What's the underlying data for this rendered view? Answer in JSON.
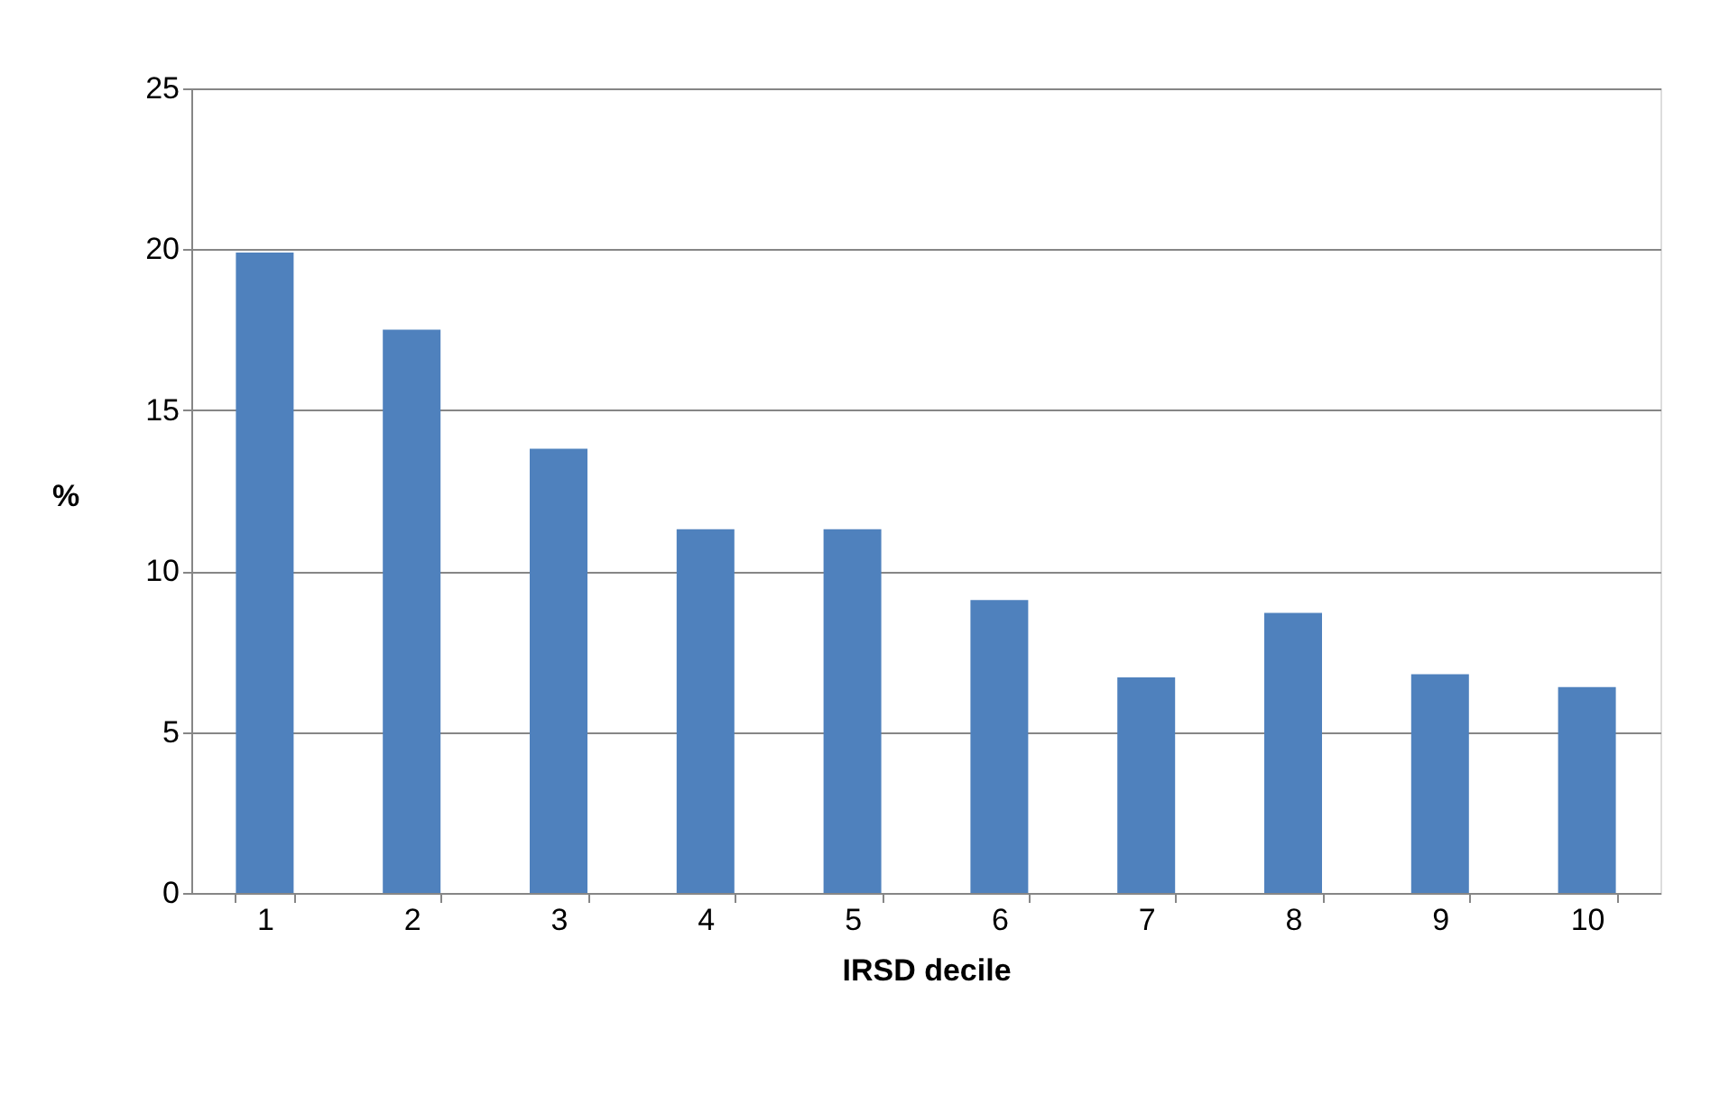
{
  "chart_data": {
    "type": "bar",
    "xlabel": "IRSD decile",
    "ylabel": "%",
    "categories": [
      "1",
      "2",
      "3",
      "4",
      "5",
      "6",
      "7",
      "8",
      "9",
      "10"
    ],
    "values": [
      19.9,
      17.5,
      13.8,
      11.3,
      11.3,
      9.1,
      6.7,
      8.7,
      6.8,
      6.4
    ],
    "color": "#4f81bd",
    "ylim": [
      0,
      25
    ],
    "yticks": [
      0,
      5,
      10,
      15,
      20,
      25
    ],
    "grid": "y"
  }
}
